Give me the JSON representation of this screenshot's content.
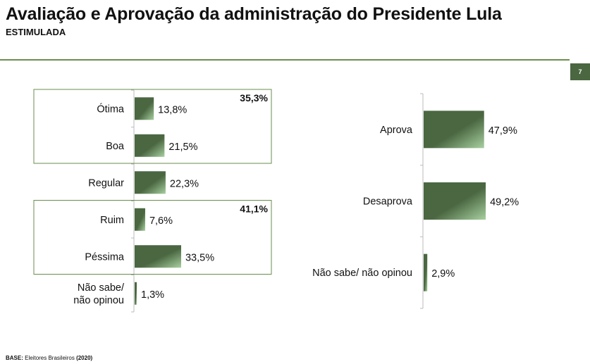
{
  "header": {
    "title": "Avaliação e Aprovação da administração do Presidente Lula",
    "subtitle": "ESTIMULADA",
    "page_number": "7"
  },
  "footer": {
    "base_label": "BASE:",
    "base_text": "Eleitores Brasileiros",
    "base_year": "(2020)"
  },
  "colors": {
    "bar": "#4a6741",
    "bar_light": "#a8d0a0",
    "box": "#6b8e4e"
  },
  "chart_data": [
    {
      "type": "bar",
      "orientation": "horizontal",
      "categories": [
        "Ótima",
        "Boa",
        "Regular",
        "Ruim",
        "Péssima",
        "Não sabe/ não opinou"
      ],
      "values": [
        13.8,
        21.5,
        22.3,
        7.6,
        33.5,
        1.3
      ],
      "data_labels": [
        "13,8%",
        "21,5%",
        "22,3%",
        "7,6%",
        "33,5%",
        "1,3%"
      ],
      "groups": [
        {
          "members": [
            "Ótima",
            "Boa"
          ],
          "total": "35,3%"
        },
        {
          "members": [
            "Ruim",
            "Péssima"
          ],
          "total": "41,1%"
        }
      ]
    },
    {
      "type": "bar",
      "orientation": "horizontal",
      "categories": [
        "Aprova",
        "Desaprova",
        "Não sabe/ não opinou"
      ],
      "values": [
        47.9,
        49.2,
        2.9
      ],
      "data_labels": [
        "47,9%",
        "49,2%",
        "2,9%"
      ]
    }
  ]
}
